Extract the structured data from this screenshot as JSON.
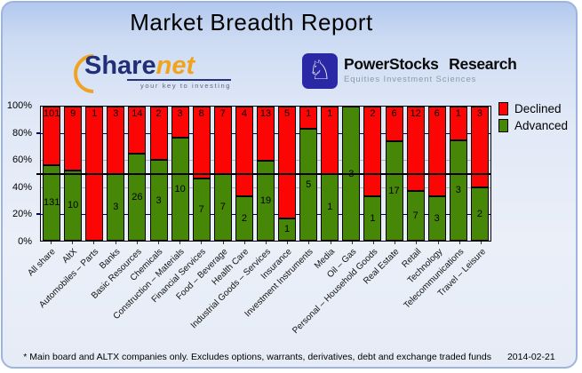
{
  "title": "Market Breadth Report",
  "logos": {
    "sharenet": {
      "text_primary": "Share",
      "text_secondary": "net",
      "tagline": "your key to investing"
    },
    "powerstocks": {
      "icon": "knight-chess-piece",
      "knight_glyph": "♘",
      "name": "PowerStocks Research",
      "tagline": "Equities Investment Sciences"
    }
  },
  "chart_data": {
    "type": "bar",
    "stacked": true,
    "orientation": "vertical",
    "note": "bars normalized to 100%, labels show raw counts of companies",
    "categories": [
      "All share",
      "AltX",
      "Automobiles – Parts",
      "Banks",
      "Basic Resources",
      "Chemicals",
      "Construction – Materials",
      "Financial Services",
      "Food – Beverage",
      "Health Care",
      "Industrial Goods – Services",
      "Insurance",
      "Investment Instruments",
      "Media",
      "Oil – Gas",
      "Personal – Household Goods",
      "Real Estate",
      "Retail",
      "Technology",
      "Telecommunications",
      "Travel – Leisure"
    ],
    "series": [
      {
        "name": "Declined",
        "color": "#fb0505",
        "values": [
          101,
          9,
          1,
          3,
          14,
          2,
          3,
          8,
          7,
          4,
          13,
          5,
          1,
          1,
          0,
          2,
          6,
          12,
          6,
          1,
          3
        ]
      },
      {
        "name": "Advanced",
        "color": "#478708",
        "values": [
          131,
          10,
          0,
          3,
          26,
          3,
          10,
          7,
          7,
          2,
          19,
          1,
          5,
          1,
          3,
          1,
          17,
          7,
          3,
          3,
          2
        ]
      }
    ],
    "y_ticks": [
      "0%",
      "20%",
      "40%",
      "60%",
      "80%",
      "100%"
    ],
    "ylim": [
      0,
      100
    ],
    "reference_line_percent": 50,
    "legend": [
      "Declined",
      "Advanced"
    ],
    "legend_position": "top-right",
    "grid": true
  },
  "footer": {
    "note": "* Main board and ALTX companies only. Excludes options, warrants, derivatives, debt and exchange traded funds",
    "date": "2014-02-21"
  },
  "colors": {
    "declined": "#fb0505",
    "advanced": "#478708",
    "reference_line": "#000000",
    "grid_major": "#b4b4b4",
    "grid_accent": "#000066",
    "card_border": "#9db3e0",
    "sharenet_navy": "#222f77",
    "sharenet_orange": "#f0a41d",
    "powerstocks_blue": "#2b28a6"
  }
}
